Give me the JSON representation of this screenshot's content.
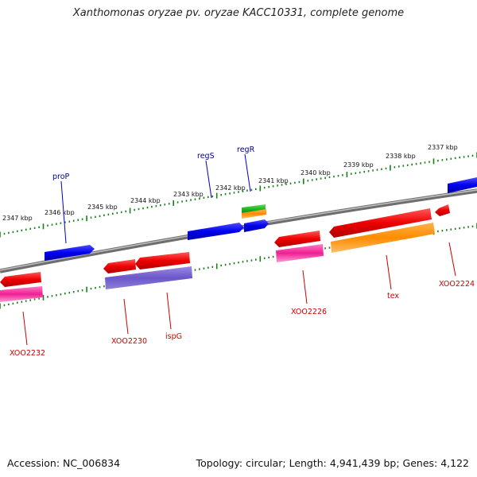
{
  "title": "Xanthomonas oryzae pv. oryzae KACC10331, complete genome",
  "footer": {
    "accession": "Accession: NC_006834",
    "topology": "Topology: circular; Length: 4,941,439 bp; Genes: 4,122"
  },
  "colors": {
    "backbone": "#8a8a8a",
    "ticks": "#1a7f1a",
    "blue": "#0000ee",
    "red": "#ee0000",
    "pink": "#ee1f93",
    "purple": "#6b57c9",
    "orange": "#ff8c00",
    "green": "#22bb22",
    "label_forward": "#00008b",
    "label_reverse": "#cc0000"
  },
  "scale_labels": [
    "2347 kbp",
    "2346 kbp",
    "2345 kbp",
    "2344 kbp",
    "2343 kbp",
    "2342 kbp",
    "2341 kbp",
    "2340 kbp",
    "2339 kbp",
    "2338 kbp",
    "2337 kbp"
  ],
  "gene_labels": {
    "proP": "proP",
    "regS": "regS",
    "regR": "regR",
    "XOO2232": "XOO2232",
    "XOO2230": "XOO2230",
    "ispG": "ispG",
    "XOO2226": "XOO2226",
    "tex": "tex",
    "XOO2224": "XOO2224"
  }
}
